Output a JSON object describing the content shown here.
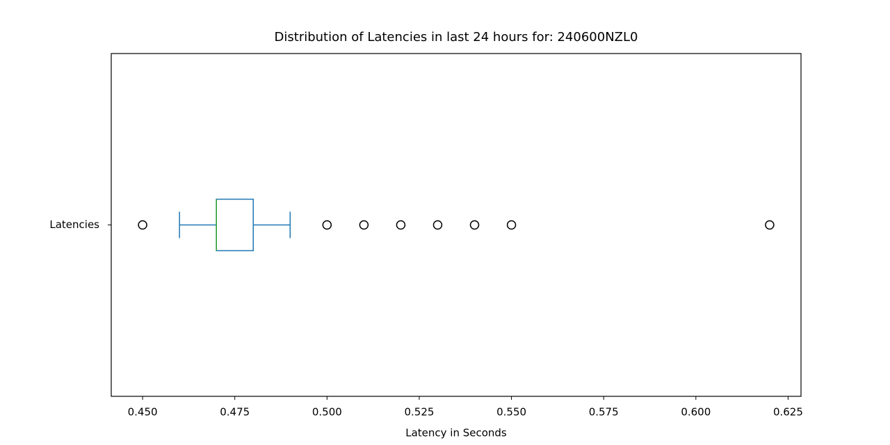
{
  "chart_data": {
    "type": "box",
    "title": "Distribution of Latencies in last 24 hours for: 240600NZL0",
    "xlabel": "Latency in Seconds",
    "categories": [
      "Latencies"
    ],
    "boxes": [
      {
        "whislo": 0.46,
        "q1": 0.47,
        "med": 0.47,
        "q3": 0.48,
        "whishi": 0.49,
        "fliers": [
          0.45,
          0.5,
          0.51,
          0.52,
          0.53,
          0.54,
          0.55,
          0.62
        ]
      }
    ],
    "box_color": "#1f77b4",
    "median_color": "#2ca02c",
    "flier_color": "#000000",
    "xlim": [
      0.4415,
      0.6285
    ],
    "xticks": [
      {
        "value": 0.45,
        "label": "0.450"
      },
      0.475,
      {
        "value": 0.5,
        "label": "0.500"
      },
      0.525,
      {
        "value": 0.55,
        "label": "0.550"
      },
      0.575,
      {
        "value": 0.6,
        "label": "0.600"
      },
      0.625
    ],
    "grid": false
  }
}
